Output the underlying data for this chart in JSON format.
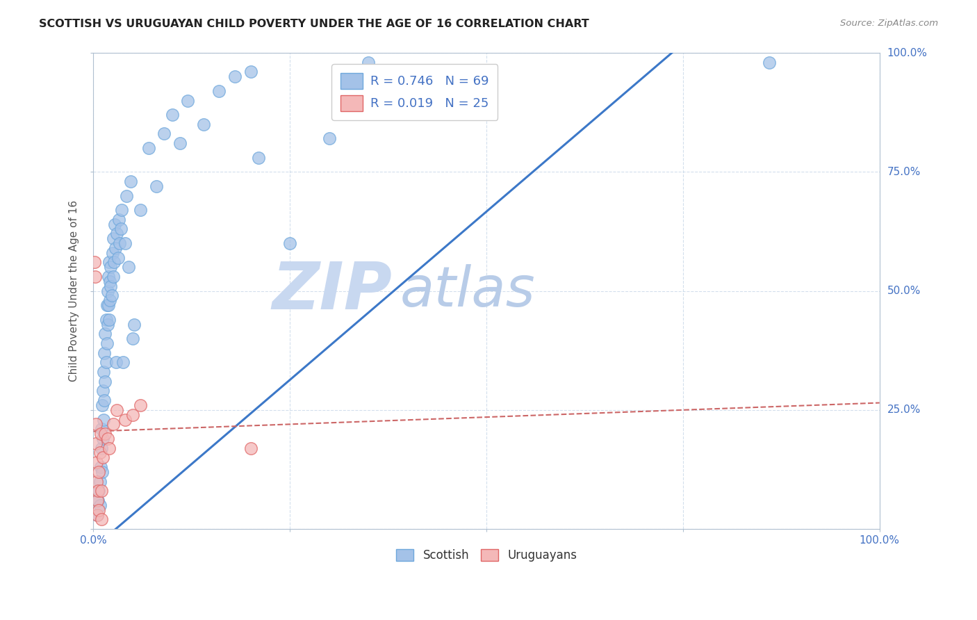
{
  "title": "SCOTTISH VS URUGUAYAN CHILD POVERTY UNDER THE AGE OF 16 CORRELATION CHART",
  "source": "Source: ZipAtlas.com",
  "ylabel": "Child Poverty Under the Age of 16",
  "xlim": [
    0,
    1
  ],
  "ylim": [
    0,
    1
  ],
  "legend_r_scottish": "R = 0.746",
  "legend_n_scottish": "N = 69",
  "legend_r_uruguayan": "R = 0.019",
  "legend_n_uruguayan": "N = 25",
  "scottish_color": "#a4c2e8",
  "scottish_edge": "#6fa8dc",
  "uruguayan_color": "#f4b8b8",
  "uruguayan_edge": "#e06666",
  "trendline_scottish_color": "#3c78c8",
  "trendline_uruguayan_color": "#cc6666",
  "watermark_zip_color": "#c8d8f0",
  "watermark_atlas_color": "#b8cce8",
  "scottish_points": [
    [
      0.005,
      0.03
    ],
    [
      0.006,
      0.06
    ],
    [
      0.007,
      0.08
    ],
    [
      0.008,
      0.05
    ],
    [
      0.008,
      0.1
    ],
    [
      0.009,
      0.13
    ],
    [
      0.01,
      0.17
    ],
    [
      0.01,
      0.21
    ],
    [
      0.011,
      0.12
    ],
    [
      0.011,
      0.26
    ],
    [
      0.012,
      0.19
    ],
    [
      0.012,
      0.29
    ],
    [
      0.013,
      0.23
    ],
    [
      0.013,
      0.33
    ],
    [
      0.014,
      0.27
    ],
    [
      0.014,
      0.37
    ],
    [
      0.015,
      0.31
    ],
    [
      0.015,
      0.41
    ],
    [
      0.016,
      0.35
    ],
    [
      0.016,
      0.44
    ],
    [
      0.017,
      0.39
    ],
    [
      0.017,
      0.47
    ],
    [
      0.018,
      0.43
    ],
    [
      0.018,
      0.5
    ],
    [
      0.019,
      0.47
    ],
    [
      0.019,
      0.53
    ],
    [
      0.02,
      0.44
    ],
    [
      0.02,
      0.56
    ],
    [
      0.021,
      0.48
    ],
    [
      0.021,
      0.52
    ],
    [
      0.022,
      0.51
    ],
    [
      0.022,
      0.55
    ],
    [
      0.023,
      0.49
    ],
    [
      0.024,
      0.58
    ],
    [
      0.025,
      0.53
    ],
    [
      0.025,
      0.61
    ],
    [
      0.026,
      0.56
    ],
    [
      0.027,
      0.64
    ],
    [
      0.028,
      0.59
    ],
    [
      0.029,
      0.35
    ],
    [
      0.03,
      0.62
    ],
    [
      0.031,
      0.57
    ],
    [
      0.032,
      0.65
    ],
    [
      0.033,
      0.6
    ],
    [
      0.035,
      0.63
    ],
    [
      0.036,
      0.67
    ],
    [
      0.038,
      0.35
    ],
    [
      0.04,
      0.6
    ],
    [
      0.042,
      0.7
    ],
    [
      0.045,
      0.55
    ],
    [
      0.047,
      0.73
    ],
    [
      0.05,
      0.4
    ],
    [
      0.052,
      0.43
    ],
    [
      0.06,
      0.67
    ],
    [
      0.07,
      0.8
    ],
    [
      0.08,
      0.72
    ],
    [
      0.09,
      0.83
    ],
    [
      0.1,
      0.87
    ],
    [
      0.11,
      0.81
    ],
    [
      0.12,
      0.9
    ],
    [
      0.14,
      0.85
    ],
    [
      0.16,
      0.92
    ],
    [
      0.18,
      0.95
    ],
    [
      0.2,
      0.96
    ],
    [
      0.21,
      0.78
    ],
    [
      0.25,
      0.6
    ],
    [
      0.3,
      0.82
    ],
    [
      0.35,
      0.98
    ],
    [
      0.86,
      0.98
    ]
  ],
  "uruguayan_points": [
    [
      0.001,
      0.56
    ],
    [
      0.002,
      0.53
    ],
    [
      0.003,
      0.22
    ],
    [
      0.003,
      0.18
    ],
    [
      0.004,
      0.14
    ],
    [
      0.004,
      0.1
    ],
    [
      0.005,
      0.06
    ],
    [
      0.005,
      0.03
    ],
    [
      0.006,
      0.08
    ],
    [
      0.007,
      0.12
    ],
    [
      0.007,
      0.04
    ],
    [
      0.008,
      0.16
    ],
    [
      0.009,
      0.2
    ],
    [
      0.01,
      0.08
    ],
    [
      0.01,
      0.02
    ],
    [
      0.012,
      0.15
    ],
    [
      0.015,
      0.2
    ],
    [
      0.018,
      0.19
    ],
    [
      0.02,
      0.17
    ],
    [
      0.025,
      0.22
    ],
    [
      0.03,
      0.25
    ],
    [
      0.04,
      0.23
    ],
    [
      0.05,
      0.24
    ],
    [
      0.06,
      0.26
    ],
    [
      0.2,
      0.17
    ]
  ],
  "scottish_trendline": [
    [
      0.0,
      -0.04
    ],
    [
      0.75,
      1.02
    ]
  ],
  "uruguayan_trendline": [
    [
      0.0,
      0.205
    ],
    [
      1.0,
      0.265
    ]
  ]
}
